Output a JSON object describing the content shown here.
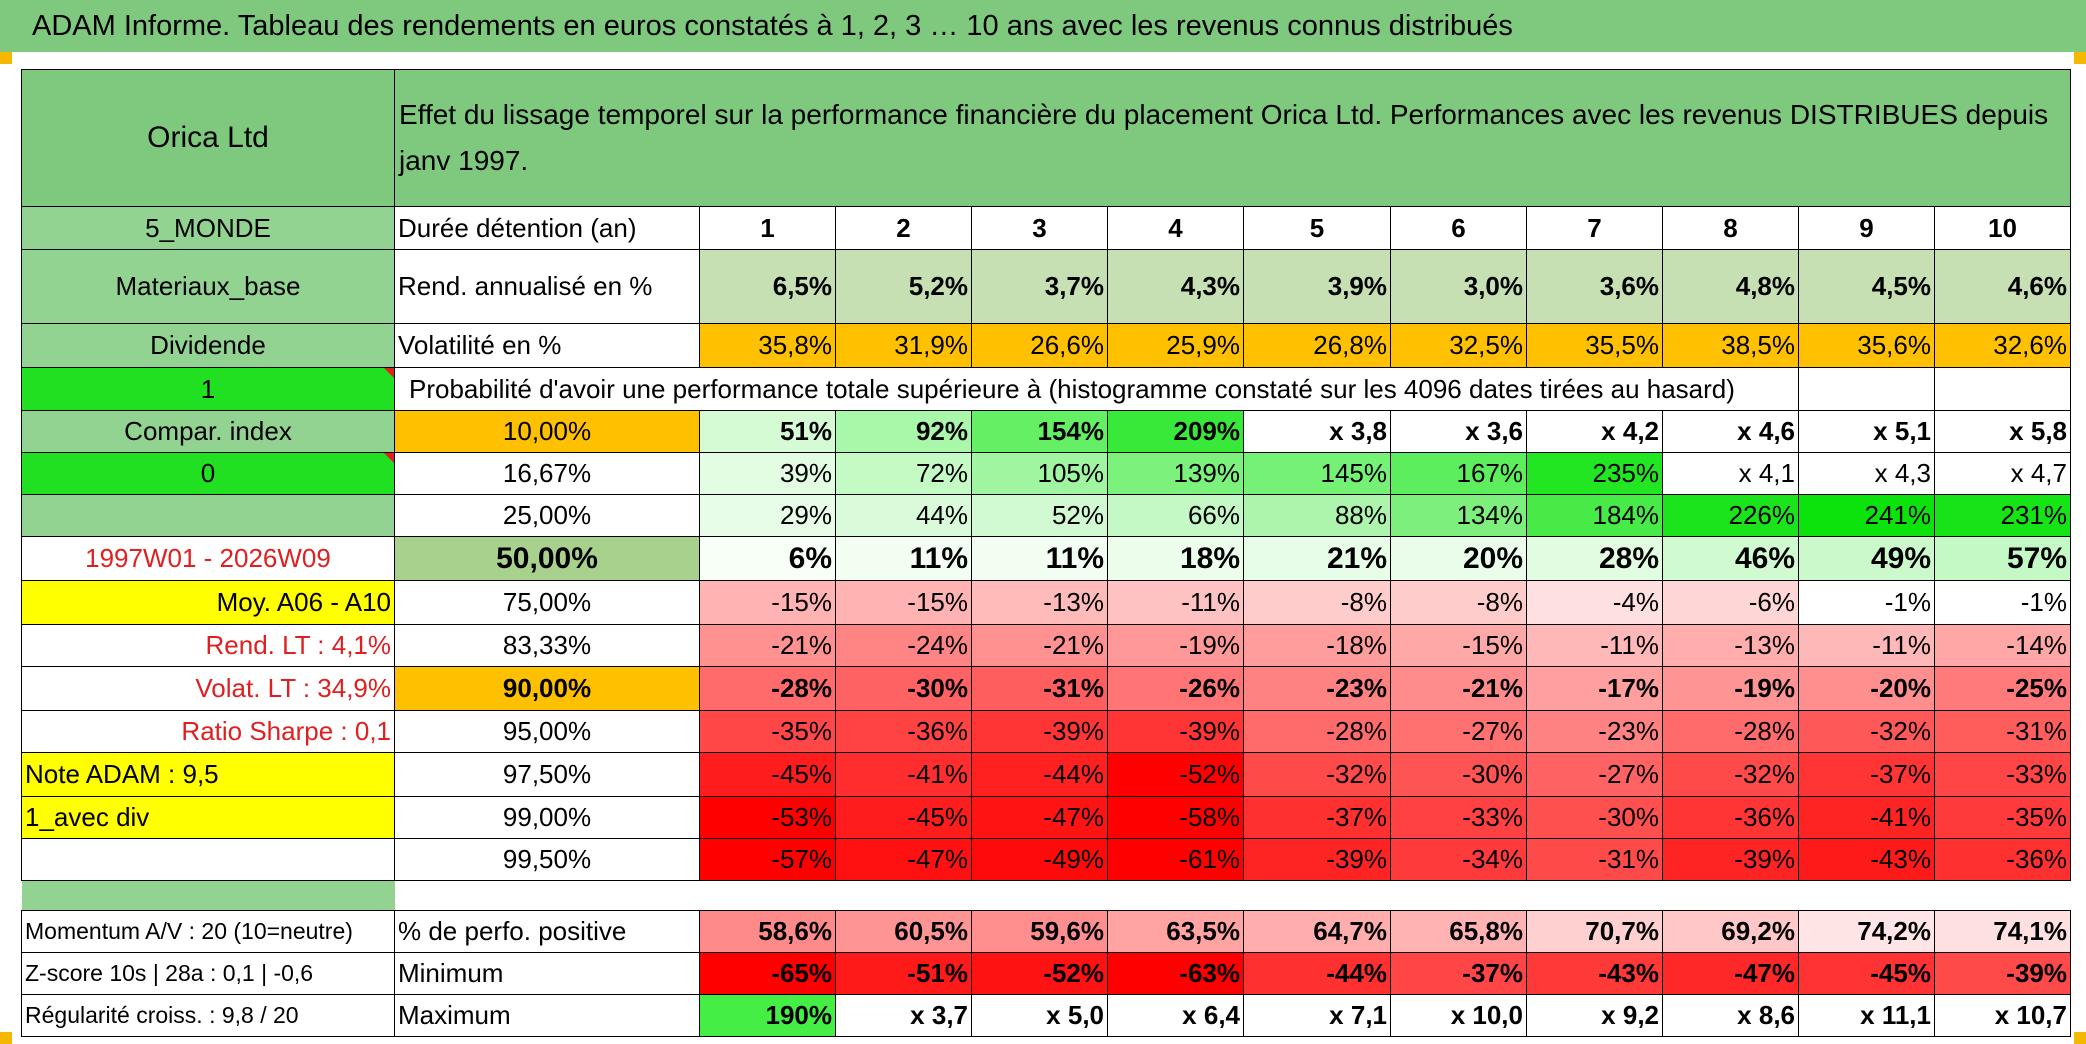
{
  "title": "ADAM Informe. Tableau des rendements en euros constatés à 1, 2, 3 … 10 ans avec les revenus connus distribués",
  "header": {
    "name": "Orica Ltd",
    "description": "Effet du lissage temporel sur la performance financière du placement Orica Ltd. Performances avec les revenus DISTRIBUES depuis janv 1997."
  },
  "side": {
    "zone": "5_MONDE",
    "sector": "Materiaux_base",
    "type": "Dividende",
    "flag1": "1",
    "compar": "Compar. index",
    "flag0": "0",
    "period": "1997W01 - 2026W09",
    "moy": "Moy. A06 - A10",
    "rend_lt": "Rend. LT :   4,1%",
    "volat_lt": "Volat. LT :   34,9%",
    "sharpe": "Ratio Sharpe :    0,1",
    "note": "Note ADAM : 9,5",
    "avec_div": "1_avec div",
    "momentum": "Momentum A/V : 20 (10=neutre)",
    "zscore": "Z-score 10s | 28a : 0,1 | -0,6",
    "regularite": "Régularité croiss. : 9,8 / 20"
  },
  "labels": {
    "duree": "Durée détention (an)",
    "rend": "Rend. annualisé en %",
    "volat": "Volatilité en %",
    "proba": "Probabilité d'avoir une performance totale supérieure à (histogramme constaté sur les 4096 dates tirées au hasard)",
    "positive": "% de perfo. positive",
    "minimum": "Minimum",
    "maximum": "Maximum"
  },
  "years": [
    "1",
    "2",
    "3",
    "4",
    "5",
    "6",
    "7",
    "8",
    "9",
    "10"
  ],
  "rend": [
    "6,5%",
    "5,2%",
    "3,7%",
    "4,3%",
    "3,9%",
    "3,0%",
    "3,6%",
    "4,8%",
    "4,5%",
    "4,6%"
  ],
  "volat": [
    "35,8%",
    "31,9%",
    "26,6%",
    "25,9%",
    "26,8%",
    "32,5%",
    "35,5%",
    "38,5%",
    "35,6%",
    "32,6%"
  ],
  "prob_rows": [
    {
      "pct": "10,00%",
      "values": [
        "51%",
        "92%",
        "154%",
        "209%",
        "x 3,8",
        "x 3,6",
        "x 4,2",
        "x 4,6",
        "x 5,1",
        "x 5,8"
      ]
    },
    {
      "pct": "16,67%",
      "values": [
        "39%",
        "72%",
        "105%",
        "139%",
        "145%",
        "167%",
        "235%",
        "x 4,1",
        "x 4,3",
        "x 4,7"
      ]
    },
    {
      "pct": "25,00%",
      "values": [
        "29%",
        "44%",
        "52%",
        "66%",
        "88%",
        "134%",
        "184%",
        "226%",
        "241%",
        "231%"
      ]
    },
    {
      "pct": "50,00%",
      "values": [
        "6%",
        "11%",
        "11%",
        "18%",
        "21%",
        "20%",
        "28%",
        "46%",
        "49%",
        "57%"
      ]
    },
    {
      "pct": "75,00%",
      "values": [
        "-15%",
        "-15%",
        "-13%",
        "-11%",
        "-8%",
        "-8%",
        "-4%",
        "-6%",
        "-1%",
        "-1%"
      ]
    },
    {
      "pct": "83,33%",
      "values": [
        "-21%",
        "-24%",
        "-21%",
        "-19%",
        "-18%",
        "-15%",
        "-11%",
        "-13%",
        "-11%",
        "-14%"
      ]
    },
    {
      "pct": "90,00%",
      "values": [
        "-28%",
        "-30%",
        "-31%",
        "-26%",
        "-23%",
        "-21%",
        "-17%",
        "-19%",
        "-20%",
        "-25%"
      ]
    },
    {
      "pct": "95,00%",
      "values": [
        "-35%",
        "-36%",
        "-39%",
        "-39%",
        "-28%",
        "-27%",
        "-23%",
        "-28%",
        "-32%",
        "-31%"
      ]
    },
    {
      "pct": "97,50%",
      "values": [
        "-45%",
        "-41%",
        "-44%",
        "-52%",
        "-32%",
        "-30%",
        "-27%",
        "-32%",
        "-37%",
        "-33%"
      ]
    },
    {
      "pct": "99,00%",
      "values": [
        "-53%",
        "-45%",
        "-47%",
        "-58%",
        "-37%",
        "-33%",
        "-30%",
        "-36%",
        "-41%",
        "-35%"
      ]
    },
    {
      "pct": "99,50%",
      "values": [
        "-57%",
        "-47%",
        "-49%",
        "-61%",
        "-39%",
        "-34%",
        "-31%",
        "-39%",
        "-43%",
        "-36%"
      ]
    }
  ],
  "positive": [
    "58,6%",
    "60,5%",
    "59,6%",
    "63,5%",
    "64,7%",
    "65,8%",
    "70,7%",
    "69,2%",
    "74,2%",
    "74,1%"
  ],
  "minimum": [
    "-65%",
    "-51%",
    "-52%",
    "-63%",
    "-44%",
    "-37%",
    "-43%",
    "-47%",
    "-45%",
    "-39%"
  ],
  "maximum": [
    "190%",
    "x 3,7",
    "x 5,0",
    "x 6,4",
    "x 7,1",
    "x 10,0",
    "x 9,2",
    "x 8,6",
    "x 11,1",
    "x 10,7"
  ],
  "colors": {
    "title_bg": "#7fc97f",
    "header_green": "#7fc97f",
    "label_green": "#92d392",
    "bright_green": "#21e021",
    "orange": "#ffc000",
    "yellow": "#ffff00",
    "light_green_cell": "#c6e0b4",
    "accent_red": "#e02020"
  },
  "cell_colors": {
    "rend": [
      "#c6e0b4",
      "#c6e0b4",
      "#c6e0b4",
      "#c6e0b4",
      "#c6e0b4",
      "#c6e0b4",
      "#c6e0b4",
      "#c6e0b4",
      "#c6e0b4",
      "#c6e0b4"
    ],
    "volat": [
      "#ffc000",
      "#ffc000",
      "#ffc000",
      "#ffc000",
      "#ffc000",
      "#ffc000",
      "#ffc000",
      "#ffc000",
      "#ffc000",
      "#ffc000"
    ],
    "prob": [
      [
        "#d4fbd4",
        "#a9f7a9",
        "#64ef64",
        "#39e939",
        "#ffffff",
        "#ffffff",
        "#ffffff",
        "#ffffff",
        "#ffffff",
        "#ffffff"
      ],
      [
        "#e3fde3",
        "#c4fac4",
        "#a0f6a0",
        "#7cf27c",
        "#75f175",
        "#5dee5d",
        "#21e621",
        "#ffffff",
        "#ffffff",
        "#ffffff"
      ],
      [
        "#e8fde8",
        "#d9fbd9",
        "#d2fad2",
        "#c4f8c4",
        "#adf5ad",
        "#7def7d",
        "#47ea47",
        "#1ce41c",
        "#0ce30c",
        "#17e417"
      ],
      [
        "#f7fff7",
        "#f2fef2",
        "#f2fef2",
        "#ecfdec",
        "#e8fde8",
        "#eafdea",
        "#e2fce2",
        "#d0fad0",
        "#ccf9cc",
        "#c4f8c4"
      ],
      [
        "#ffb3b3",
        "#ffb3b3",
        "#ffbaba",
        "#ffc2c2",
        "#ffcccc",
        "#ffcccc",
        "#ffe0e0",
        "#ffd6d6",
        "#ffffff",
        "#ffffff"
      ],
      [
        "#ff9191",
        "#ff8585",
        "#ff9191",
        "#ff9999",
        "#ff9c9c",
        "#ffa8a8",
        "#ffb8b8",
        "#ffadad",
        "#ffb8b8",
        "#ffa6a6"
      ],
      [
        "#ff6b6b",
        "#ff6262",
        "#ff5e5e",
        "#ff7575",
        "#ff8282",
        "#ff8c8c",
        "#ff9f9f",
        "#ff9494",
        "#ff8f8f",
        "#ff7b7b"
      ],
      [
        "#ff4747",
        "#ff4343",
        "#ff3535",
        "#ff3535",
        "#ff6b6b",
        "#ff7070",
        "#ff8282",
        "#ff6b6b",
        "#ff5858",
        "#ff5c5c"
      ],
      [
        "#ff1c1c",
        "#ff2d2d",
        "#ff2020",
        "#ff0000",
        "#ff4a4a",
        "#ff5454",
        "#ff6262",
        "#ff4a4a",
        "#ff3535",
        "#ff4545"
      ],
      [
        "#ff0000",
        "#ff1c1c",
        "#ff1313",
        "#ff0000",
        "#ff3030",
        "#ff4141",
        "#ff5050",
        "#ff3535",
        "#ff2424",
        "#ff3a3a"
      ],
      [
        "#ff0000",
        "#ff1111",
        "#ff0a0a",
        "#ff0000",
        "#ff2424",
        "#ff3a3a",
        "#ff4a4a",
        "#ff2424",
        "#ff1a1a",
        "#ff3030"
      ]
    ],
    "positive": [
      "#ff8a8a",
      "#ff9494",
      "#ff8f8f",
      "#ffa3a3",
      "#ffadad",
      "#ffb3b3",
      "#ffd0d0",
      "#ffc7c7",
      "#ffe5e5",
      "#ffe0e0"
    ],
    "minimum": [
      "#ff0000",
      "#ff1a1a",
      "#ff1212",
      "#ff0000",
      "#ff3030",
      "#ff4545",
      "#ff3838",
      "#ff2828",
      "#ff3333",
      "#ff4a4a"
    ],
    "maximum": [
      "#44ee44",
      "#ffffff",
      "#ffffff",
      "#ffffff",
      "#ffffff",
      "#ffffff",
      "#ffffff",
      "#ffffff",
      "#ffffff",
      "#ffffff"
    ]
  }
}
